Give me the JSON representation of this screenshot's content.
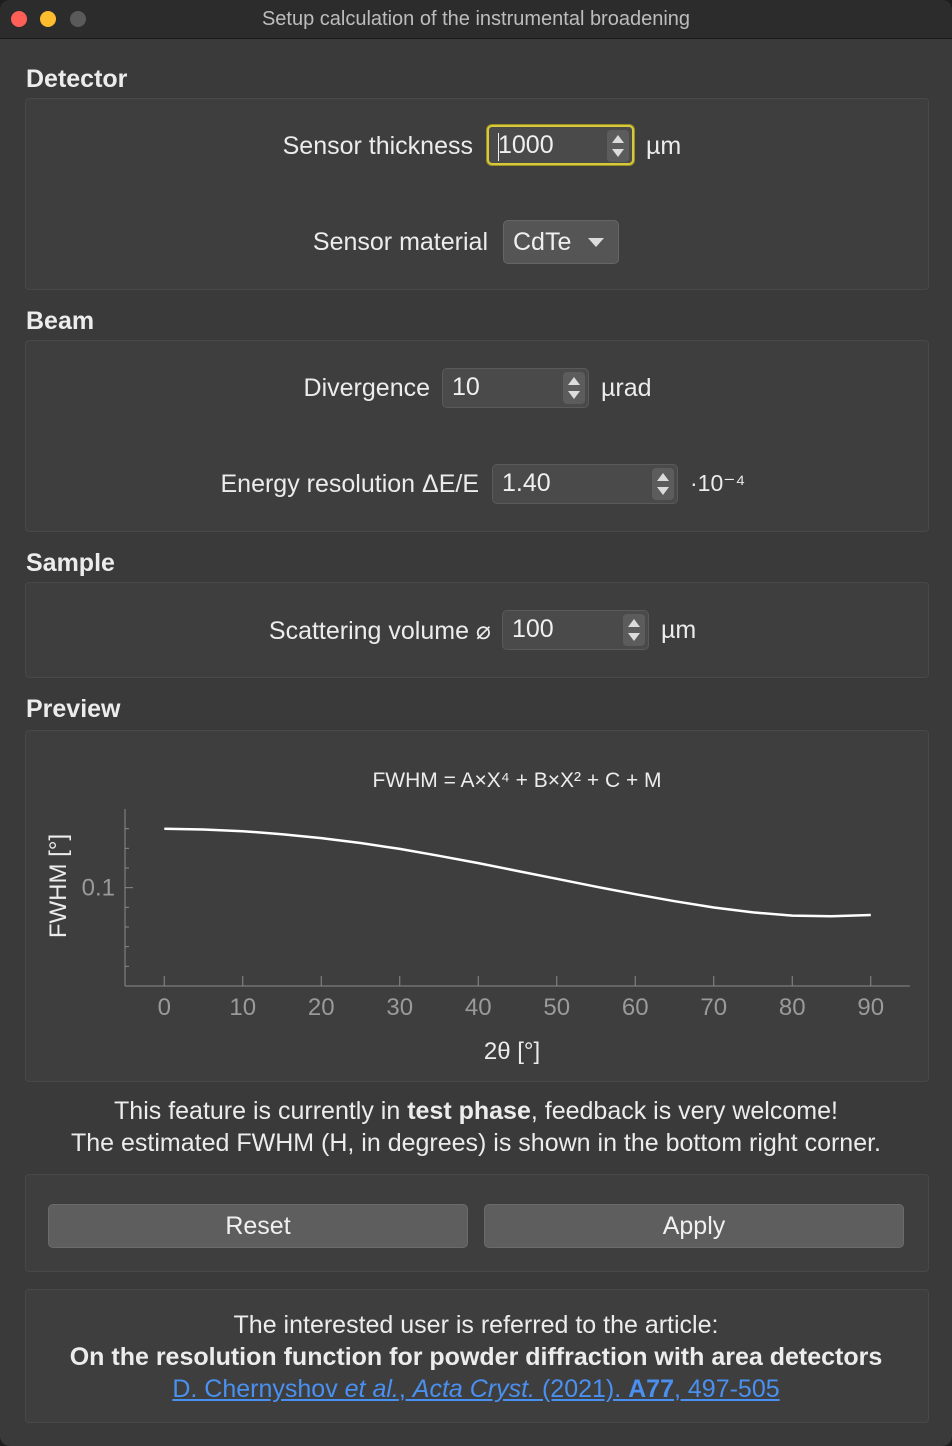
{
  "window": {
    "title": "Setup calculation of the instrumental broadening"
  },
  "detector": {
    "heading": "Detector",
    "thickness_label": "Sensor thickness",
    "thickness_value": "1000",
    "thickness_unit": "µm",
    "material_label": "Sensor material",
    "material_value": "CdTe"
  },
  "beam": {
    "heading": "Beam",
    "divergence_label": "Divergence",
    "divergence_value": "10",
    "divergence_unit": "µrad",
    "energy_label": "Energy resolution ΔE/E",
    "energy_value": "1.40",
    "energy_unit": "·10⁻⁴"
  },
  "sample": {
    "heading": "Sample",
    "volume_label": "Scattering volume ⌀",
    "volume_value": "100",
    "volume_unit": "µm"
  },
  "preview": {
    "heading": "Preview"
  },
  "chart_data": {
    "type": "line",
    "title": "FWHM = A×X⁴ + B×X² + C + M",
    "xlabel": "2θ [°]",
    "ylabel": "FWHM [°]",
    "xlim": [
      -5,
      95
    ],
    "ylim": [
      0.05,
      0.14
    ],
    "xticks": [
      0,
      10,
      20,
      30,
      40,
      50,
      60,
      70,
      80,
      90
    ],
    "yticks": [
      0.1
    ],
    "grid": false,
    "series": [
      {
        "color": "#ffffff",
        "x": [
          0,
          5,
          10,
          15,
          20,
          25,
          30,
          35,
          40,
          45,
          50,
          55,
          60,
          65,
          70,
          75,
          80,
          85,
          90
        ],
        "y": [
          0.13,
          0.1296,
          0.1287,
          0.1272,
          0.1252,
          0.1227,
          0.1197,
          0.1162,
          0.1125,
          0.1085,
          0.1045,
          0.1005,
          0.0967,
          0.0931,
          0.0899,
          0.0874,
          0.0858,
          0.0855,
          0.0861
        ]
      }
    ]
  },
  "info": {
    "line1_pre": "This feature is currently in ",
    "line1_bold": "test phase",
    "line1_post": ", feedback is very welcome!",
    "line2": "The estimated FWHM (H, in degrees) is shown in the bottom right corner."
  },
  "buttons": {
    "reset": "Reset",
    "apply": "Apply"
  },
  "reference": {
    "intro": "The interested user is referred to the article:",
    "title": "On the resolution function for powder diffraction with area detectors",
    "link_authors": "D. Chernyshov ",
    "link_etal": "et al.",
    "link_sep": ", ",
    "link_journal": "Acta Cryst.",
    "link_year": " (2021). ",
    "link_volume": "A77",
    "link_pages": ", 497-505"
  }
}
